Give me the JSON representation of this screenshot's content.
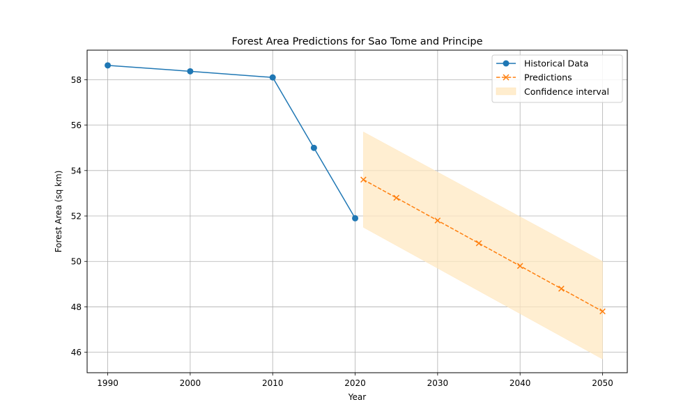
{
  "chart_data": {
    "type": "line",
    "title": "Forest Area Predictions for Sao Tome and Principe",
    "xlabel": "Year",
    "ylabel": "Forest Area (sq km)",
    "xlim": [
      1987.5,
      2053.0
    ],
    "ylim": [
      45.1,
      59.3
    ],
    "xticks": [
      1990,
      2000,
      2010,
      2020,
      2030,
      2040,
      2050
    ],
    "yticks": [
      46,
      48,
      50,
      52,
      54,
      56,
      58
    ],
    "grid": true,
    "legend_position": "top-right",
    "series": [
      {
        "name": "Historical Data",
        "color": "#1f77b4",
        "marker": "circle",
        "line_style": "solid",
        "x": [
          1990,
          2000,
          2010,
          2015,
          2020
        ],
        "y": [
          58.63,
          58.37,
          58.1,
          55.0,
          51.9
        ]
      },
      {
        "name": "Predictions",
        "color": "#ff7f0e",
        "marker": "x",
        "line_style": "dashed",
        "x": [
          2021,
          2025,
          2030,
          2035,
          2040,
          2045,
          2050
        ],
        "y": [
          53.6,
          52.8,
          51.8,
          50.8,
          49.8,
          48.8,
          47.8
        ]
      }
    ],
    "confidence_interval": {
      "name": "Confidence interval",
      "color": "#ffe8c2",
      "x": [
        2021,
        2050
      ],
      "lower": [
        51.5,
        45.7
      ],
      "upper": [
        55.7,
        50.0
      ]
    }
  }
}
